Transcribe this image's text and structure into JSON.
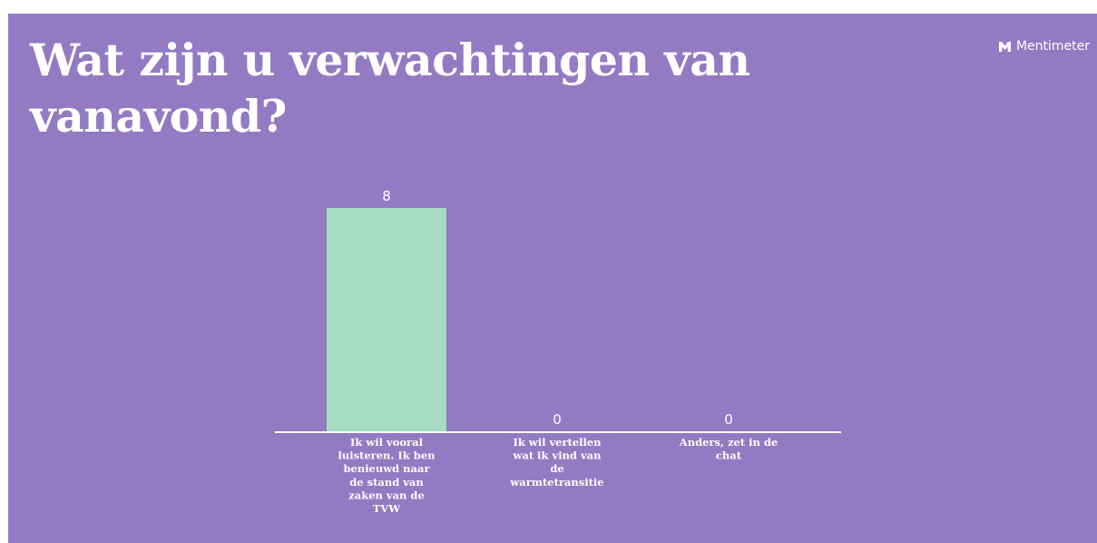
{
  "slide": {
    "title": "Wat zijn u verwachtingen van vanavond?",
    "brand_name": "Mentimeter",
    "brand_icon": "mentimeter-logo-icon",
    "background_color": "#927bc2",
    "bar_color": "#a6dcc3",
    "text_color": "#ffffff"
  },
  "chart_data": {
    "type": "bar",
    "title": "Wat zijn u verwachtingen van vanavond?",
    "categories": [
      "Ik wil vooral luisteren. Ik ben benieuwd naar de stand van zaken van de TVW",
      "Ik wil vertellen wat ik vind van de warmtetransitie",
      "Anders, zet in de chat"
    ],
    "category_lines": [
      [
        "Ik wil vooral",
        "luisteren. Ik ben",
        "benieuwd naar",
        "de stand van",
        "zaken van de",
        "TVW"
      ],
      [
        "Ik wil vertellen",
        "wat ik vind van",
        "de",
        "warmtetransitie"
      ],
      [
        "Anders, zet in de",
        "chat"
      ]
    ],
    "values": [
      8,
      0,
      0
    ],
    "value_labels": [
      "8",
      "0",
      "0"
    ],
    "ylim": [
      0,
      8
    ],
    "grid": false,
    "legend": "none"
  }
}
